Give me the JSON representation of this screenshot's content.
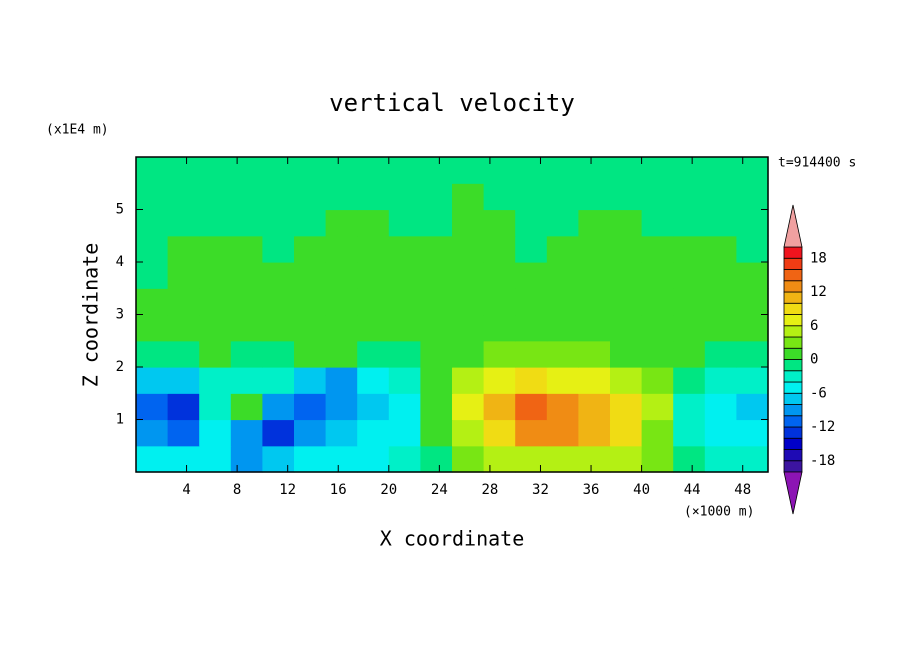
{
  "chart_data": {
    "type": "contour",
    "title": "vertical velocity",
    "annotation": "t=914400 s",
    "x_label": "X coordinate",
    "x_unit": "(×1000 m)",
    "y_label": "Z coordinate",
    "y_unit": "(x1E4 m)",
    "xlim": [
      0,
      50
    ],
    "ylim": [
      0,
      6
    ],
    "xticks": [
      4,
      8,
      12,
      16,
      20,
      24,
      28,
      32,
      36,
      40,
      44,
      48
    ],
    "yticks": [
      1,
      2,
      3,
      4,
      5
    ],
    "x": [
      1.25,
      3.75,
      6.25,
      8.75,
      11.25,
      13.75,
      16.25,
      18.75,
      21.25,
      23.75,
      26.25,
      28.75,
      31.25,
      33.75,
      36.25,
      38.75,
      41.25,
      43.75,
      46.25,
      48.75
    ],
    "y": [
      0.25,
      0.75,
      1.25,
      1.75,
      2.25,
      2.75,
      3.25,
      3.75,
      4.25,
      4.75,
      5.25,
      5.75
    ],
    "values": [
      [
        -5,
        -6,
        -5,
        -9,
        -8,
        -6,
        -5,
        -5,
        -4,
        -1,
        2,
        4,
        5,
        5,
        5,
        4,
        2,
        -2,
        -4,
        -4
      ],
      [
        -10,
        -12,
        -6,
        -9,
        -14,
        -10,
        -7,
        -6,
        -5,
        0,
        4,
        8,
        12,
        12,
        10,
        8,
        3,
        -3,
        -5,
        -6
      ],
      [
        -11,
        -13,
        -4,
        1,
        -10,
        -11,
        -10,
        -7,
        -5,
        1,
        6,
        10,
        14,
        13,
        11,
        8,
        4,
        -3,
        -5,
        -8
      ],
      [
        -7,
        -7,
        -4,
        -3,
        -4,
        -7,
        -10,
        -6,
        -3,
        1,
        4,
        6,
        8,
        7,
        6,
        5,
        3,
        -2,
        -4,
        -4
      ],
      [
        -1,
        -1,
        1,
        -1,
        -1,
        0,
        1,
        -1,
        -1,
        1,
        1,
        2,
        2,
        2,
        2,
        1,
        1,
        1,
        -1,
        -1
      ],
      [
        1,
        1,
        1,
        1,
        1,
        1,
        1,
        1,
        1,
        1,
        1,
        1,
        1,
        1,
        1,
        1,
        1,
        1,
        1,
        1
      ],
      [
        1,
        1,
        1,
        1,
        1,
        1,
        1,
        1,
        1,
        1,
        1,
        1,
        1,
        1,
        1,
        1,
        1,
        1,
        1,
        1
      ],
      [
        -1,
        1,
        1,
        1,
        1,
        1,
        1,
        1,
        1,
        1,
        1,
        1,
        1,
        1,
        1,
        1,
        1,
        1,
        1,
        1
      ],
      [
        -1,
        1,
        1,
        1,
        -1,
        1,
        1,
        1,
        1,
        1,
        1,
        1,
        -1,
        1,
        1,
        1,
        1,
        1,
        1,
        -1
      ],
      [
        -1,
        -1,
        -1,
        -1,
        -1,
        -1,
        1,
        1,
        -1,
        -1,
        1,
        1,
        -1,
        -1,
        1,
        1,
        -1,
        -1,
        -1,
        -1
      ],
      [
        -1,
        -1,
        -1,
        -1,
        -1,
        -1,
        -1,
        -1,
        -1,
        -1,
        1,
        -1,
        -1,
        -1,
        -1,
        -1,
        -1,
        -1,
        -1,
        -1
      ],
      [
        -1,
        -1,
        -1,
        -1,
        -1,
        -1,
        -1,
        -1,
        -1,
        -1,
        -1,
        -1,
        -1,
        -1,
        -1,
        -1,
        -1,
        -1,
        -1,
        -1
      ]
    ],
    "colorbar": {
      "levels": [
        -20,
        -18,
        -16,
        -14,
        -12,
        -10,
        -8,
        -6,
        -4,
        -2,
        0,
        2,
        4,
        6,
        8,
        10,
        12,
        14,
        16,
        18,
        20
      ],
      "colors": [
        "#8c14b4",
        "#3c14a0",
        "#1e0ab4",
        "#0000c8",
        "#0032dc",
        "#0064f0",
        "#0096f0",
        "#00c8f0",
        "#00f0f0",
        "#00f0c8",
        "#00e682",
        "#3cdc28",
        "#78e614",
        "#b4f014",
        "#e6f014",
        "#f0dc14",
        "#f0b414",
        "#f08c14",
        "#f06414",
        "#f03c14",
        "#f0141e",
        "#f0a0a0"
      ],
      "ticks": [
        -18,
        -12,
        -6,
        0,
        6,
        12,
        18
      ]
    }
  }
}
